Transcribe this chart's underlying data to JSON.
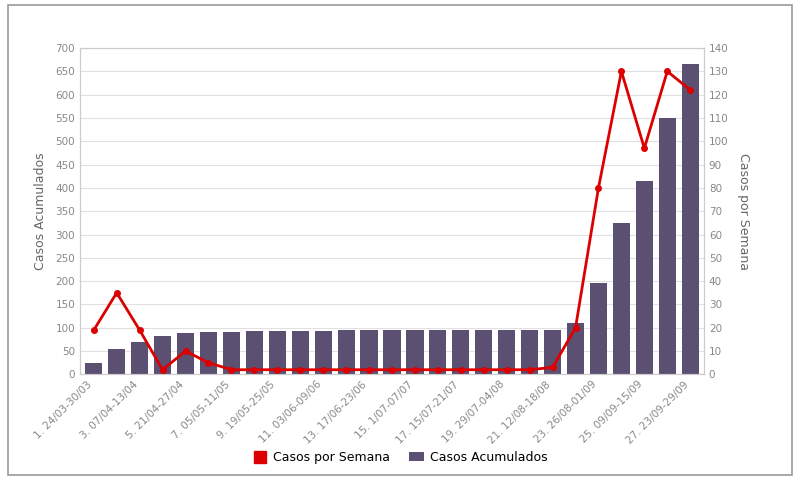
{
  "weeks_labels": [
    "1. 24/03-30/03",
    "3. 07/04-13/04",
    "5. 21/04-27/04",
    "7. 05/05-11/05",
    "9. 19/05-25/05",
    "11. 03/06-09/06",
    "13. 17/06-23/06",
    "15. 1/07-07/07",
    "17. 15/07-21/07",
    "19. 29/07-04/08",
    "21. 12/08-18/08",
    "23. 26/08-01/09",
    "25. 09/09-15/09",
    "27. 23/09-29/09"
  ],
  "acumulados": [
    25,
    55,
    70,
    82,
    88,
    92,
    92,
    93,
    93,
    94,
    94,
    95,
    95,
    95,
    95,
    95,
    95,
    95,
    95,
    95,
    95,
    110,
    195,
    325,
    415,
    550,
    665
  ],
  "semana": [
    19,
    35,
    19,
    2,
    10,
    5,
    2,
    2,
    2,
    2,
    2,
    2,
    2,
    2,
    2,
    2,
    2,
    2,
    2,
    2,
    3,
    20,
    80,
    130,
    97,
    130,
    122
  ],
  "bar_color": "#5b4f72",
  "line_color": "#dd0000",
  "bg_color": "#ffffff",
  "frame_color": "#999999",
  "grid_color": "#e0e0e0",
  "ylabel_left": "Casos Acumulados",
  "ylabel_right": "Casos por Semana",
  "legend_line": "Casos por Semana",
  "legend_bar": "Casos Acumulados",
  "ylim_left": [
    0,
    700
  ],
  "ylim_right": [
    0,
    140
  ],
  "yticks_left": [
    0,
    50,
    100,
    150,
    200,
    250,
    300,
    350,
    400,
    450,
    500,
    550,
    600,
    650,
    700
  ],
  "yticks_right": [
    0,
    10,
    20,
    30,
    40,
    50,
    60,
    70,
    80,
    90,
    100,
    110,
    120,
    130,
    140
  ],
  "tick_label_color": "#888888",
  "axis_label_color": "#666666",
  "title_fontsize": 9,
  "tick_fontsize": 7.5,
  "xlabel_fontsize": 9,
  "legend_fontsize": 9
}
